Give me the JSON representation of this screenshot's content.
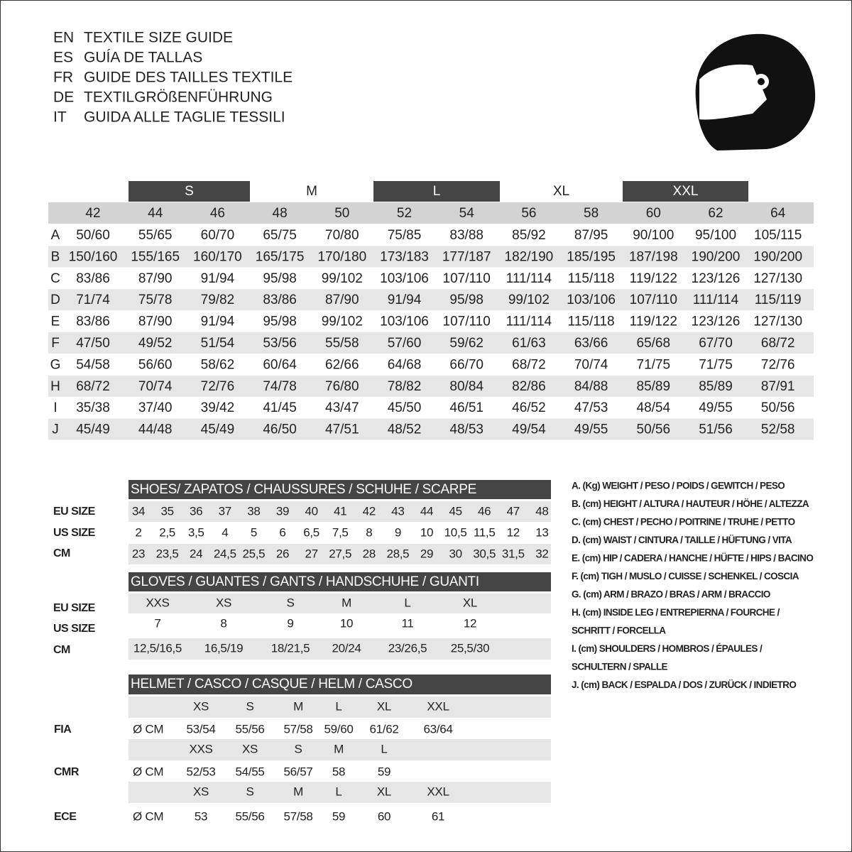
{
  "header": {
    "lines": [
      {
        "code": "EN",
        "text": "TEXTILE SIZE GUIDE"
      },
      {
        "code": "ES",
        "text": "GUÍA DE TALLAS"
      },
      {
        "code": "FR",
        "text": "GUIDE DES TAILLES TEXTILE"
      },
      {
        "code": "DE",
        "text": "TEXTILGRÖßENFÜHRUNG"
      },
      {
        "code": "IT",
        "text": "GUIDA ALLE TAGLIE TESSILI"
      }
    ]
  },
  "size_table": {
    "groups": [
      "S",
      "M",
      "L",
      "XL",
      "XXL"
    ],
    "sizes": [
      "42",
      "44",
      "46",
      "48",
      "50",
      "52",
      "54",
      "56",
      "58",
      "60",
      "62",
      "64"
    ],
    "rows": [
      {
        "letter": "A",
        "cells": [
          "50/60",
          "55/65",
          "60/70",
          "65/75",
          "70/80",
          "75/85",
          "83/88",
          "85/92",
          "87/95",
          "90/100",
          "95/100",
          "105/115"
        ]
      },
      {
        "letter": "B",
        "cells": [
          "150/160",
          "155/165",
          "160/170",
          "165/175",
          "170/180",
          "173/183",
          "177/187",
          "182/190",
          "185/195",
          "187/198",
          "190/200",
          "190/200"
        ]
      },
      {
        "letter": "C",
        "cells": [
          "83/86",
          "87/90",
          "91/94",
          "95/98",
          "99/102",
          "103/106",
          "107/110",
          "111/114",
          "115/118",
          "119/122",
          "123/126",
          "127/130"
        ]
      },
      {
        "letter": "D",
        "cells": [
          "71/74",
          "75/78",
          "79/82",
          "83/86",
          "87/90",
          "91/94",
          "95/98",
          "99/102",
          "103/106",
          "107/110",
          "111/114",
          "115/119"
        ]
      },
      {
        "letter": "E",
        "cells": [
          "83/86",
          "87/90",
          "91/94",
          "95/98",
          "99/102",
          "103/106",
          "107/110",
          "111/114",
          "115/118",
          "119/122",
          "123/126",
          "127/130"
        ]
      },
      {
        "letter": "F",
        "cells": [
          "47/50",
          "49/52",
          "51/54",
          "53/56",
          "55/58",
          "57/60",
          "59/62",
          "61/63",
          "63/66",
          "65/68",
          "67/70",
          "68/72"
        ]
      },
      {
        "letter": "G",
        "cells": [
          "54/58",
          "56/60",
          "58/62",
          "60/64",
          "62/66",
          "64/68",
          "66/70",
          "68/72",
          "70/74",
          "71/75",
          "71/75",
          "72/76"
        ]
      },
      {
        "letter": "H",
        "cells": [
          "68/72",
          "70/74",
          "72/76",
          "74/78",
          "76/80",
          "78/82",
          "80/84",
          "82/86",
          "84/88",
          "85/89",
          "85/89",
          "87/91"
        ]
      },
      {
        "letter": "I",
        "cells": [
          "35/38",
          "37/40",
          "39/42",
          "41/45",
          "43/47",
          "45/50",
          "46/51",
          "46/52",
          "47/53",
          "48/54",
          "49/55",
          "50/56"
        ]
      },
      {
        "letter": "J",
        "cells": [
          "45/49",
          "44/48",
          "45/49",
          "46/50",
          "47/51",
          "48/52",
          "48/53",
          "49/54",
          "49/55",
          "50/56",
          "51/56",
          "52/58"
        ]
      }
    ]
  },
  "shoes": {
    "title": "SHOES/ ZAPATOS / CHAUSSURES / SCHUHE / SCARPE",
    "rows": [
      {
        "label": "EU SIZE",
        "cells": [
          "34",
          "35",
          "36",
          "37",
          "38",
          "39",
          "40",
          "41",
          "42",
          "43",
          "44",
          "45",
          "46",
          "47",
          "48"
        ]
      },
      {
        "label": "US SIZE",
        "cells": [
          "2",
          "2,5",
          "3,5",
          "4",
          "5",
          "6",
          "6,5",
          "7,5",
          "8",
          "9",
          "10",
          "10,5",
          "11,5",
          "12",
          "13"
        ]
      },
      {
        "label": "CM",
        "cells": [
          "23",
          "23,5",
          "24",
          "24,5",
          "25,5",
          "26",
          "27",
          "27,5",
          "28",
          "28,5",
          "29",
          "30",
          "30,5",
          "31,5",
          "32"
        ]
      }
    ]
  },
  "gloves": {
    "title": "GLOVES / GUANTES / GANTS / HANDSCHUHE / GUANTI",
    "rows": [
      {
        "label": "EU SIZE",
        "cells": [
          "XXS",
          "XS",
          "S",
          "M",
          "L",
          "XL"
        ]
      },
      {
        "label": "US SIZE",
        "cells": [
          "7",
          "8",
          "9",
          "10",
          "11",
          "12"
        ]
      },
      {
        "label": "CM",
        "cells": [
          "12,5/16,5",
          "16,5/19",
          "18/21,5",
          "20/24",
          "23/26,5",
          "25,5/30"
        ]
      }
    ]
  },
  "helmet": {
    "title": "HELMET / CASCO / CASQUE / HELM / CASCO",
    "blocks": [
      {
        "label": "FIA",
        "unit": "Ø CM",
        "sizes": [
          "XS",
          "S",
          "M",
          "L",
          "XL",
          "XXL"
        ],
        "values": [
          "53/54",
          "55/56",
          "57/58",
          "59/60",
          "61/62",
          "63/64"
        ]
      },
      {
        "label": "CMR",
        "unit": "Ø CM",
        "sizes": [
          "XXS",
          "XS",
          "S",
          "M",
          "L"
        ],
        "values": [
          "52/53",
          "54/55",
          "56/57",
          "58",
          "59"
        ]
      },
      {
        "label": "ECE",
        "unit": "Ø CM",
        "sizes": [
          "XS",
          "S",
          "M",
          "L",
          "XL",
          "XXL"
        ],
        "values": [
          "53",
          "55/56",
          "57/58",
          "59",
          "60",
          "61"
        ]
      }
    ]
  },
  "legend": {
    "lines": [
      "A. (Kg) WEIGHT / PESO / POIDS / GEWITCH / PESO",
      "B. (cm) HEIGHT / ALTURA / HAUTEUR / HÖHE / ALTEZZA",
      "C. (cm) CHEST / PECHO / POITRINE / TRUHE / PETTO",
      "D. (cm) WAIST / CINTURA / TAILLE / HÜFTUNG / VITA",
      "E. (cm) HIP / CADERA / HANCHE / HÜFTE / HIPS / BACINO",
      "F. (cm) TIGH / MUSLO / CUISSE / SCHENKEL / COSCIA",
      "G. (cm) ARM / BRAZO / BRAS / ARM / BRACCIO",
      "H. (cm) INSIDE LEG / ENTREPIERNA / FOURCHE /",
      "SCHRITT / FORCELLA",
      "I. (cm) SHOULDERS / HOMBROS / ÉPAULES /",
      "SCHULTERN / SPALLE",
      "J. (cm) BACK / ESPALDA / DOS / ZURÜCK / INDIETRO"
    ]
  }
}
